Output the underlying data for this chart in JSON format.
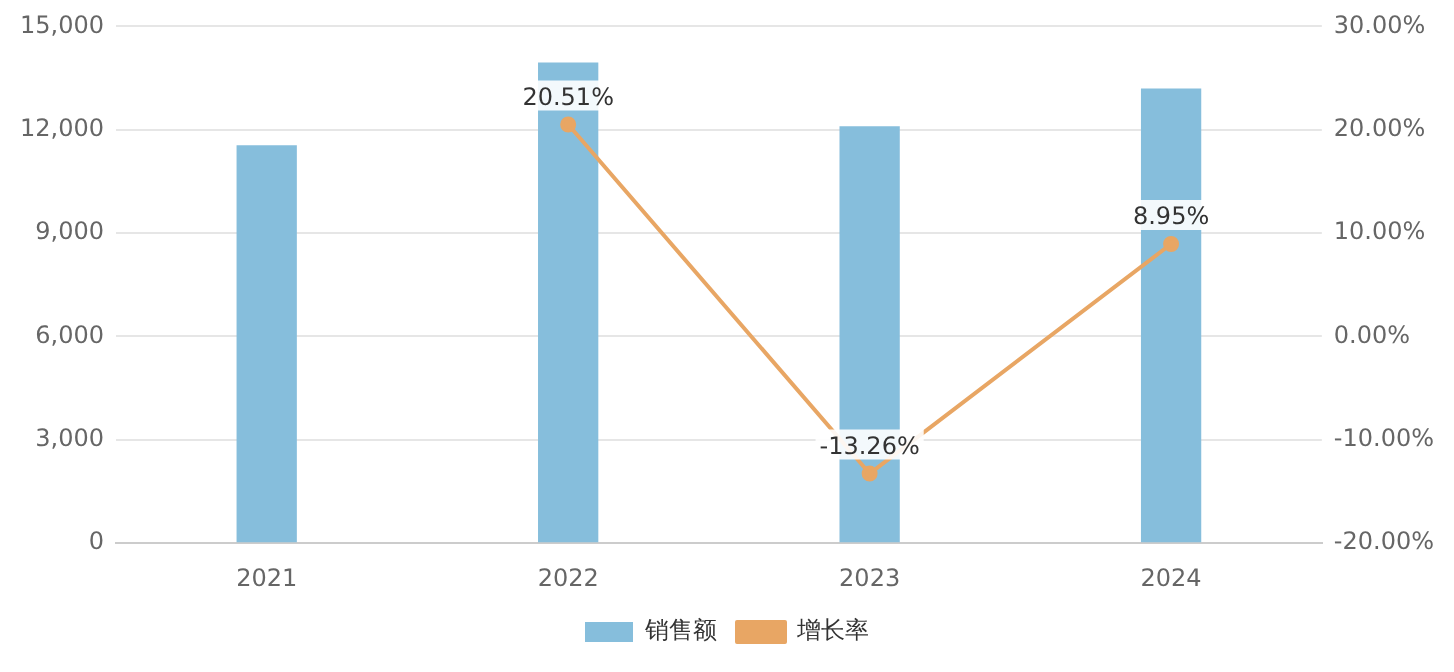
{
  "chart_data": {
    "type": "bar",
    "categories": [
      "2021",
      "2022",
      "2023",
      "2024"
    ],
    "series": [
      {
        "name": "销售额",
        "color": "#86bedc",
        "values": [
          11550,
          13950,
          12100,
          13200
        ]
      },
      {
        "name": "增长率",
        "type": "line",
        "axis": "y2",
        "color": "#e8a664",
        "values": [
          null,
          20.51,
          -13.26,
          8.95
        ],
        "value_labels": [
          null,
          "20.51%",
          "-13.26%",
          "8.95%"
        ]
      }
    ],
    "ylim": [
      0,
      15000
    ],
    "yticks": [
      {
        "value": 0,
        "label": "0"
      },
      {
        "value": 3000,
        "label": "3,000"
      },
      {
        "value": 6000,
        "label": "6,000"
      },
      {
        "value": 9000,
        "label": "9,000"
      },
      {
        "value": 12000,
        "label": "12,000"
      },
      {
        "value": 15000,
        "label": "15,000"
      }
    ],
    "y2lim": [
      -20,
      30
    ],
    "y2ticks": [
      {
        "value": -20,
        "label": "-20.00%"
      },
      {
        "value": -10,
        "label": "-10.00%"
      },
      {
        "value": 0,
        "label": "0.00%"
      },
      {
        "value": 10,
        "label": "10.00%"
      },
      {
        "value": 20,
        "label": "20.00%"
      },
      {
        "value": 30,
        "label": "30.00%"
      }
    ],
    "grid": "y",
    "legend": "bottom",
    "marker": "circle",
    "line_style": "solid"
  }
}
